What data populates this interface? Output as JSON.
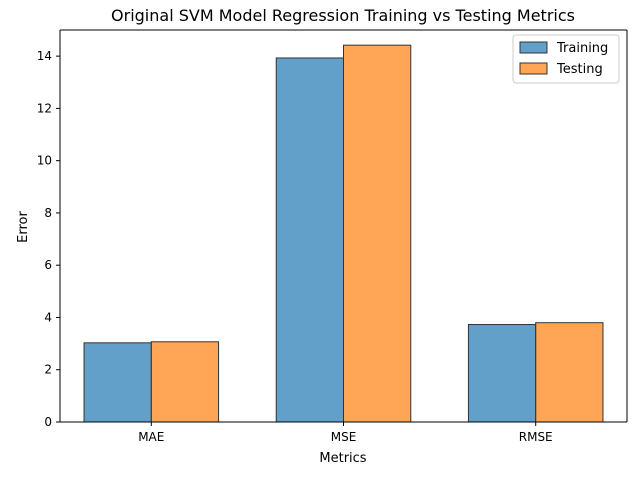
{
  "chart_data": {
    "type": "bar",
    "title": "Original SVM Model Regression Training vs Testing Metrics",
    "xlabel": "Metrics",
    "ylabel": "Error",
    "categories": [
      "MAE",
      "MSE",
      "RMSE"
    ],
    "series": [
      {
        "name": "Training",
        "values": [
          3.03,
          13.93,
          3.73
        ],
        "color": "#1f77b4"
      },
      {
        "name": "Testing",
        "values": [
          3.07,
          14.42,
          3.8
        ],
        "color": "#ff7f0e"
      }
    ],
    "ylim": [
      0,
      15
    ],
    "yticks": [
      0,
      2,
      4,
      6,
      8,
      10,
      12,
      14
    ],
    "grid": false,
    "legend_position": "top-right"
  }
}
